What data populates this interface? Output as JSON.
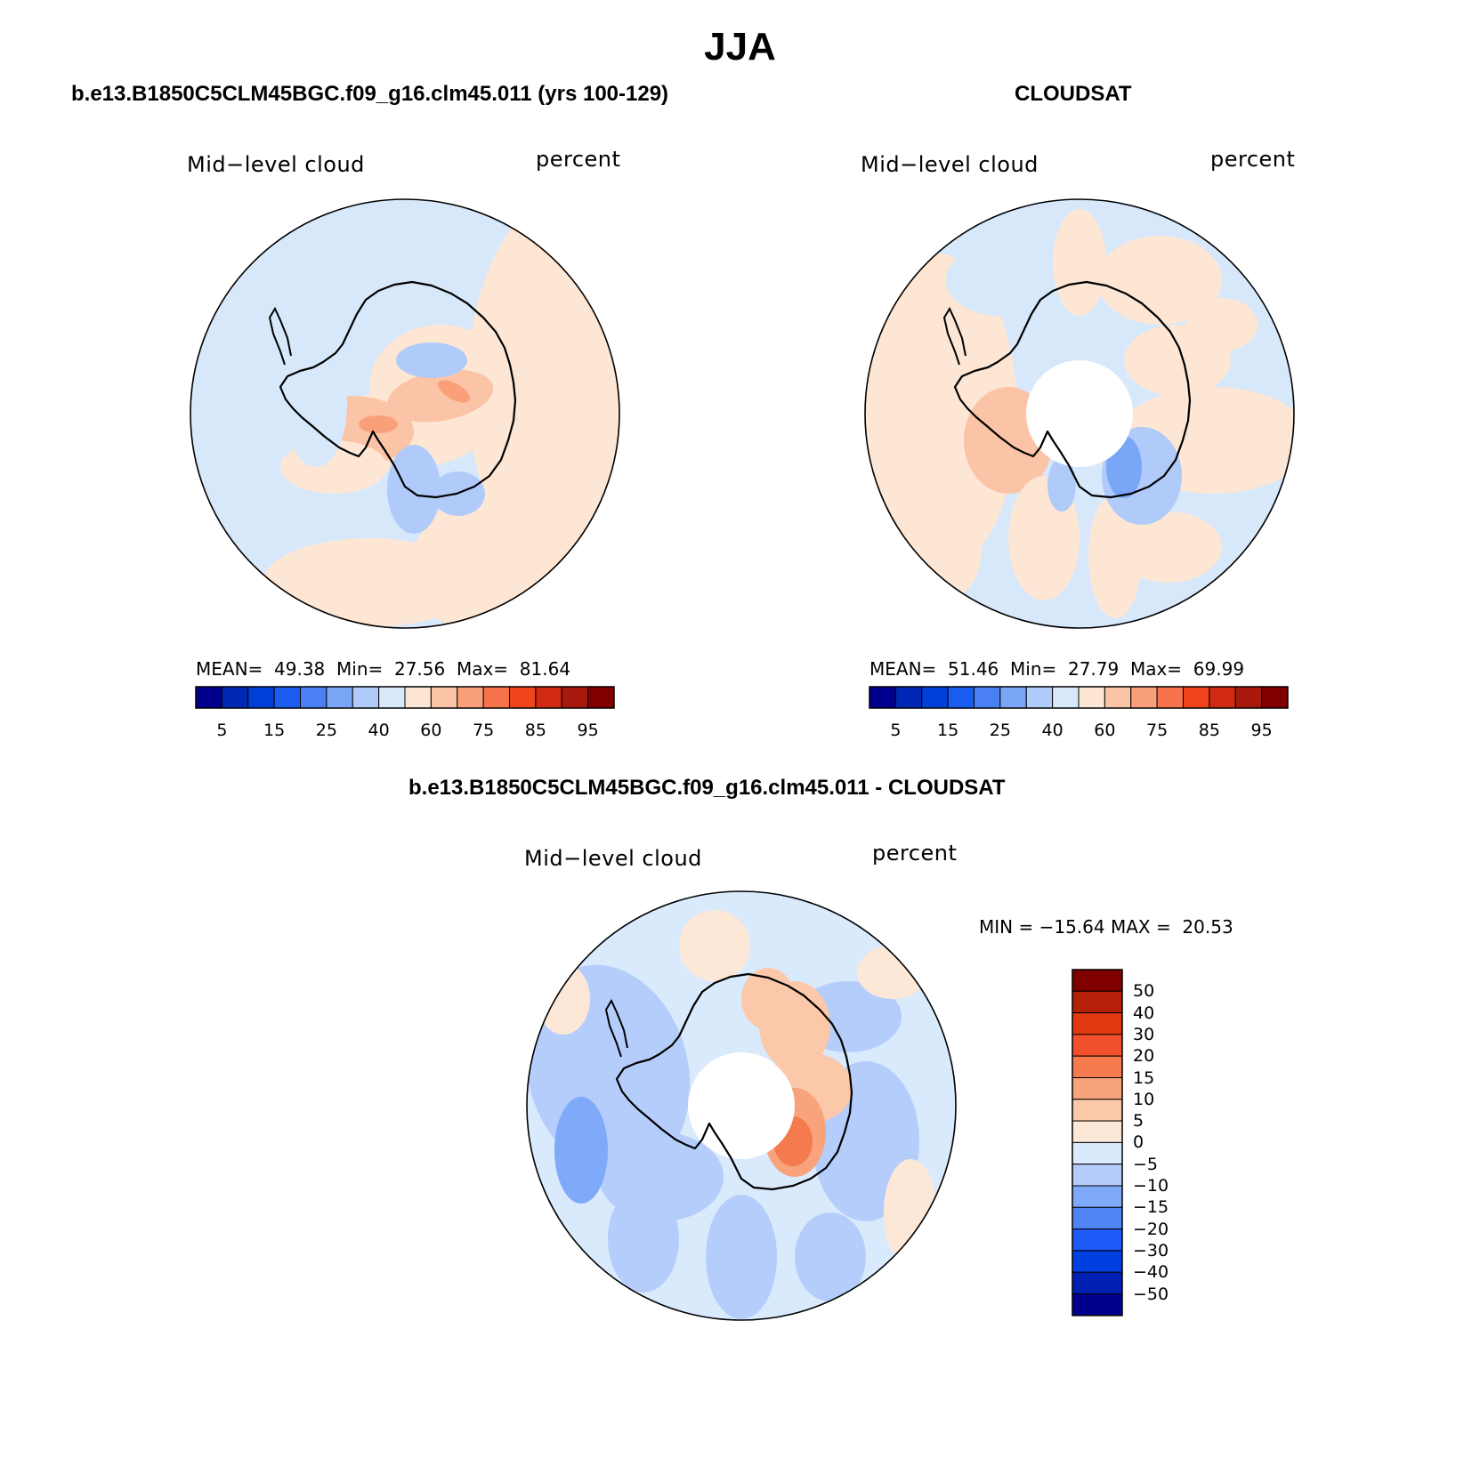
{
  "main_title": "JJA",
  "colors": {
    "seq": [
      "#00008c",
      "#0028b4",
      "#0040d8",
      "#1a5cf0",
      "#4a80f4",
      "#7aa6f7",
      "#b0cbfa",
      "#d8e8fb",
      "#fde6d4",
      "#fcc4a6",
      "#f9a07a",
      "#f6734b",
      "#f0441c",
      "#d02a10",
      "#a8190c",
      "#800000"
    ],
    "diff": [
      "#00008c",
      "#0020b4",
      "#0040e0",
      "#1e5af8",
      "#4f85f7",
      "#7faafa",
      "#b5cdfb",
      "#daeafd",
      "#fde8d8",
      "#fcc8aa",
      "#f9a37c",
      "#f57a4e",
      "#f2502a",
      "#e23a10",
      "#b52008",
      "#800000"
    ],
    "coast": "#000000",
    "ring": "#000000"
  },
  "panels": [
    {
      "title": "b.e13.B1850C5CLM45BGC.f09_g16.clm45.011 (yrs 100-129)",
      "left_label": "Mid−level cloud",
      "right_label": "percent",
      "stats": {
        "mean_label": "MEAN=",
        "mean": "49.38",
        "min_label": "Min=",
        "min": "27.56",
        "max_label": "Max=",
        "max": "81.64"
      },
      "colorbar_ticks": [
        "5",
        "15",
        "25",
        "40",
        "60",
        "75",
        "85",
        "95"
      ]
    },
    {
      "title": "CLOUDSAT",
      "left_label": "Mid−level cloud",
      "right_label": "percent",
      "stats": {
        "mean_label": "MEAN=",
        "mean": "51.46",
        "min_label": "Min=",
        "min": "27.79",
        "max_label": "Max=",
        "max": "69.99"
      },
      "colorbar_ticks": [
        "5",
        "15",
        "25",
        "40",
        "60",
        "75",
        "85",
        "95"
      ]
    }
  ],
  "diff_panel": {
    "title": "b.e13.B1850C5CLM45BGC.f09_g16.clm45.011 - CLOUDSAT",
    "left_label": "Mid−level cloud",
    "right_label": "percent",
    "minmax": "MIN = −15.64 MAX =  20.53",
    "colorbar_ticks": [
      "50",
      "40",
      "30",
      "20",
      "15",
      "10",
      "5",
      "0",
      "−5",
      "−10",
      "−15",
      "−20",
      "−30",
      "−40",
      "−50"
    ]
  }
}
